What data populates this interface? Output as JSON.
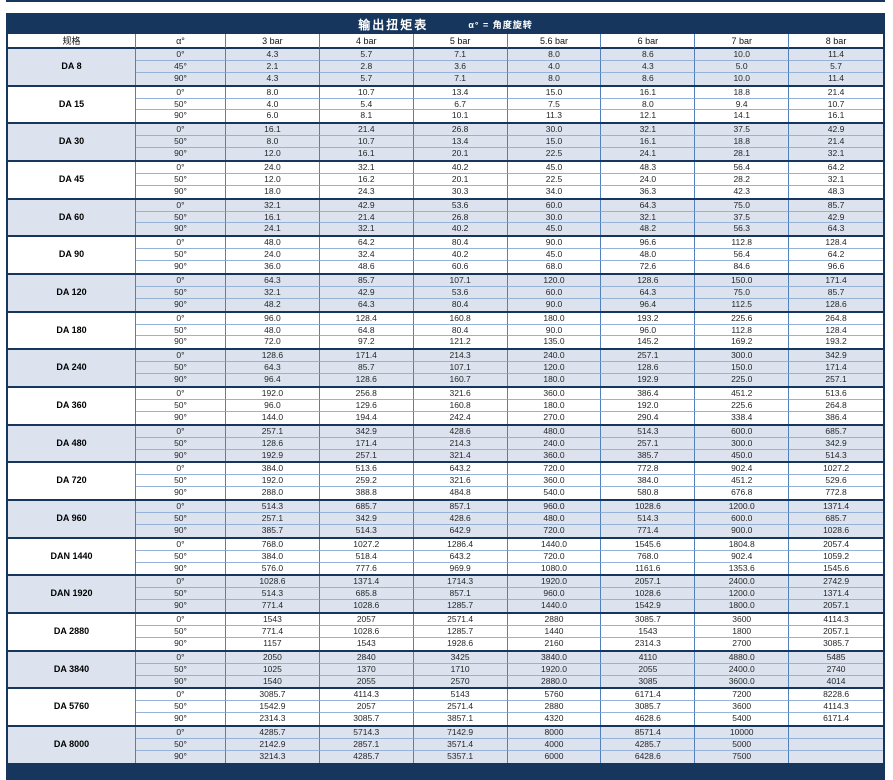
{
  "title_bar": {
    "title": "输出扭矩表",
    "note": "α° = 角度旋转"
  },
  "colors": {
    "header_navy": "#17365d",
    "grid_line_vertical": "#4f81bd",
    "grid_line_horizontal": "#95b3d7",
    "shaded_row_bg": "#dce3ef",
    "title_text": "#ffffff",
    "cell_text": "#262626"
  },
  "table": {
    "columns": [
      "规格",
      "α°",
      "3 bar",
      "4 bar",
      "5 bar",
      "5.6 bar",
      "6 bar",
      "7 bar",
      "8 bar"
    ],
    "groups": [
      {
        "spec": "DA 8",
        "shaded": true,
        "rows": [
          {
            "angle": "0°",
            "values": [
              "4.3",
              "5.7",
              "7.1",
              "8.0",
              "8.6",
              "10.0",
              "11.4"
            ]
          },
          {
            "angle": "45°",
            "values": [
              "2.1",
              "2.8",
              "3.6",
              "4.0",
              "4.3",
              "5.0",
              "5.7"
            ]
          },
          {
            "angle": "90°",
            "values": [
              "4.3",
              "5.7",
              "7.1",
              "8.0",
              "8.6",
              "10.0",
              "11.4"
            ]
          }
        ]
      },
      {
        "spec": "DA 15",
        "shaded": false,
        "rows": [
          {
            "angle": "0°",
            "values": [
              "8.0",
              "10.7",
              "13.4",
              "15.0",
              "16.1",
              "18.8",
              "21.4"
            ]
          },
          {
            "angle": "50°",
            "values": [
              "4.0",
              "5.4",
              "6.7",
              "7.5",
              "8.0",
              "9.4",
              "10.7"
            ]
          },
          {
            "angle": "90°",
            "values": [
              "6.0",
              "8.1",
              "10.1",
              "11.3",
              "12.1",
              "14.1",
              "16.1"
            ]
          }
        ]
      },
      {
        "spec": "DA 30",
        "shaded": true,
        "rows": [
          {
            "angle": "0°",
            "values": [
              "16.1",
              "21.4",
              "26.8",
              "30.0",
              "32.1",
              "37.5",
              "42.9"
            ]
          },
          {
            "angle": "50°",
            "values": [
              "8.0",
              "10.7",
              "13.4",
              "15.0",
              "16.1",
              "18.8",
              "21.4"
            ]
          },
          {
            "angle": "90°",
            "values": [
              "12.0",
              "16.1",
              "20.1",
              "22.5",
              "24.1",
              "28.1",
              "32.1"
            ]
          }
        ]
      },
      {
        "spec": "DA 45",
        "shaded": false,
        "rows": [
          {
            "angle": "0°",
            "values": [
              "24.0",
              "32.1",
              "40.2",
              "45.0",
              "48.3",
              "56.4",
              "64.2"
            ]
          },
          {
            "angle": "50°",
            "values": [
              "12.0",
              "16.2",
              "20.1",
              "22.5",
              "24.0",
              "28.2",
              "32.1"
            ]
          },
          {
            "angle": "90°",
            "values": [
              "18.0",
              "24.3",
              "30.3",
              "34.0",
              "36.3",
              "42.3",
              "48.3"
            ]
          }
        ]
      },
      {
        "spec": "DA 60",
        "shaded": true,
        "rows": [
          {
            "angle": "0°",
            "values": [
              "32.1",
              "42.9",
              "53.6",
              "60.0",
              "64.3",
              "75.0",
              "85.7"
            ]
          },
          {
            "angle": "50°",
            "values": [
              "16.1",
              "21.4",
              "26.8",
              "30.0",
              "32.1",
              "37.5",
              "42.9"
            ]
          },
          {
            "angle": "90°",
            "values": [
              "24.1",
              "32.1",
              "40.2",
              "45.0",
              "48.2",
              "56.3",
              "64.3"
            ]
          }
        ]
      },
      {
        "spec": "DA 90",
        "shaded": false,
        "rows": [
          {
            "angle": "0°",
            "values": [
              "48.0",
              "64.2",
              "80.4",
              "90.0",
              "96.6",
              "112.8",
              "128.4"
            ]
          },
          {
            "angle": "50°",
            "values": [
              "24.0",
              "32.4",
              "40.2",
              "45.0",
              "48.0",
              "56.4",
              "64.2"
            ]
          },
          {
            "angle": "90°",
            "values": [
              "36.0",
              "48.6",
              "60.6",
              "68.0",
              "72.6",
              "84.6",
              "96.6"
            ]
          }
        ]
      },
      {
        "spec": "DA 120",
        "shaded": true,
        "rows": [
          {
            "angle": "0°",
            "values": [
              "64.3",
              "85.7",
              "107.1",
              "120.0",
              "128.6",
              "150.0",
              "171.4"
            ]
          },
          {
            "angle": "50°",
            "values": [
              "32.1",
              "42.9",
              "53.6",
              "60.0",
              "64.3",
              "75.0",
              "85.7"
            ]
          },
          {
            "angle": "90°",
            "values": [
              "48.2",
              "64.3",
              "80.4",
              "90.0",
              "96.4",
              "112.5",
              "128.6"
            ]
          }
        ]
      },
      {
        "spec": "DA 180",
        "shaded": false,
        "rows": [
          {
            "angle": "0°",
            "values": [
              "96.0",
              "128.4",
              "160.8",
              "180.0",
              "193.2",
              "225.6",
              "264.8"
            ]
          },
          {
            "angle": "50°",
            "values": [
              "48.0",
              "64.8",
              "80.4",
              "90.0",
              "96.0",
              "112.8",
              "128.4"
            ]
          },
          {
            "angle": "90°",
            "values": [
              "72.0",
              "97.2",
              "121.2",
              "135.0",
              "145.2",
              "169.2",
              "193.2"
            ]
          }
        ]
      },
      {
        "spec": "DA 240",
        "shaded": true,
        "rows": [
          {
            "angle": "0°",
            "values": [
              "128.6",
              "171.4",
              "214.3",
              "240.0",
              "257.1",
              "300.0",
              "342.9"
            ]
          },
          {
            "angle": "50°",
            "values": [
              "64.3",
              "85.7",
              "107.1",
              "120.0",
              "128.6",
              "150.0",
              "171.4"
            ]
          },
          {
            "angle": "90°",
            "values": [
              "96.4",
              "128.6",
              "160.7",
              "180.0",
              "192.9",
              "225.0",
              "257.1"
            ]
          }
        ]
      },
      {
        "spec": "DA 360",
        "shaded": false,
        "rows": [
          {
            "angle": "0°",
            "values": [
              "192.0",
              "256.8",
              "321.6",
              "360.0",
              "386.4",
              "451.2",
              "513.6"
            ]
          },
          {
            "angle": "50°",
            "values": [
              "96.0",
              "129.6",
              "160.8",
              "180.0",
              "192.0",
              "225.6",
              "264.8"
            ]
          },
          {
            "angle": "90°",
            "values": [
              "144.0",
              "194.4",
              "242.4",
              "270.0",
              "290.4",
              "338.4",
              "386.4"
            ]
          }
        ]
      },
      {
        "spec": "DA 480",
        "shaded": true,
        "rows": [
          {
            "angle": "0°",
            "values": [
              "257.1",
              "342.9",
              "428.6",
              "480.0",
              "514.3",
              "600.0",
              "685.7"
            ]
          },
          {
            "angle": "50°",
            "values": [
              "128.6",
              "171.4",
              "214.3",
              "240.0",
              "257.1",
              "300.0",
              "342.9"
            ]
          },
          {
            "angle": "90°",
            "values": [
              "192.9",
              "257.1",
              "321.4",
              "360.0",
              "385.7",
              "450.0",
              "514.3"
            ]
          }
        ]
      },
      {
        "spec": "DA 720",
        "shaded": false,
        "rows": [
          {
            "angle": "0°",
            "values": [
              "384.0",
              "513.6",
              "643.2",
              "720.0",
              "772.8",
              "902.4",
              "1027.2"
            ]
          },
          {
            "angle": "50°",
            "values": [
              "192.0",
              "259.2",
              "321.6",
              "360.0",
              "384.0",
              "451.2",
              "529.6"
            ]
          },
          {
            "angle": "90°",
            "values": [
              "288.0",
              "388.8",
              "484.8",
              "540.0",
              "580.8",
              "676.8",
              "772.8"
            ]
          }
        ]
      },
      {
        "spec": "DA 960",
        "shaded": true,
        "rows": [
          {
            "angle": "0°",
            "values": [
              "514.3",
              "685.7",
              "857.1",
              "960.0",
              "1028.6",
              "1200.0",
              "1371.4"
            ]
          },
          {
            "angle": "50°",
            "values": [
              "257.1",
              "342.9",
              "428.6",
              "480.0",
              "514.3",
              "600.0",
              "685.7"
            ]
          },
          {
            "angle": "90°",
            "values": [
              "385.7",
              "514.3",
              "642.9",
              "720.0",
              "771.4",
              "900.0",
              "1028.6"
            ]
          }
        ]
      },
      {
        "spec": "DAN 1440",
        "shaded": false,
        "rows": [
          {
            "angle": "0°",
            "values": [
              "768.0",
              "1027.2",
              "1286.4",
              "1440.0",
              "1545.6",
              "1804.8",
              "2057.4"
            ]
          },
          {
            "angle": "50°",
            "values": [
              "384.0",
              "518.4",
              "643.2",
              "720.0",
              "768.0",
              "902.4",
              "1059.2"
            ]
          },
          {
            "angle": "90°",
            "values": [
              "576.0",
              "777.6",
              "969.9",
              "1080.0",
              "1161.6",
              "1353.6",
              "1545.6"
            ]
          }
        ]
      },
      {
        "spec": "DAN 1920",
        "shaded": true,
        "rows": [
          {
            "angle": "0°",
            "values": [
              "1028.6",
              "1371.4",
              "1714.3",
              "1920.0",
              "2057.1",
              "2400.0",
              "2742.9"
            ]
          },
          {
            "angle": "50°",
            "values": [
              "514.3",
              "685.8",
              "857.1",
              "960.0",
              "1028.6",
              "1200.0",
              "1371.4"
            ]
          },
          {
            "angle": "90°",
            "values": [
              "771.4",
              "1028.6",
              "1285.7",
              "1440.0",
              "1542.9",
              "1800.0",
              "2057.1"
            ]
          }
        ]
      },
      {
        "spec": "DA 2880",
        "shaded": false,
        "rows": [
          {
            "angle": "0°",
            "values": [
              "1543",
              "2057",
              "2571.4",
              "2880",
              "3085.7",
              "3600",
              "4114.3"
            ]
          },
          {
            "angle": "50°",
            "values": [
              "771.4",
              "1028.6",
              "1285.7",
              "1440",
              "1543",
              "1800",
              "2057.1"
            ]
          },
          {
            "angle": "90°",
            "values": [
              "1157",
              "1543",
              "1928.6",
              "2160",
              "2314.3",
              "2700",
              "3085.7"
            ]
          }
        ]
      },
      {
        "spec": "DA 3840",
        "shaded": true,
        "rows": [
          {
            "angle": "0°",
            "values": [
              "2050",
              "2840",
              "3425",
              "3840.0",
              "4110",
              "4880.0",
              "5485"
            ]
          },
          {
            "angle": "50°",
            "values": [
              "1025",
              "1370",
              "1710",
              "1920.0",
              "2055",
              "2400.0",
              "2740"
            ]
          },
          {
            "angle": "90°",
            "values": [
              "1540",
              "2055",
              "2570",
              "2880.0",
              "3085",
              "3600.0",
              "4014"
            ]
          }
        ]
      },
      {
        "spec": "DA 5760",
        "shaded": false,
        "rows": [
          {
            "angle": "0°",
            "values": [
              "3085.7",
              "4114.3",
              "5143",
              "5760",
              "6171.4",
              "7200",
              "8228.6"
            ]
          },
          {
            "angle": "50°",
            "values": [
              "1542.9",
              "2057",
              "2571.4",
              "2880",
              "3085.7",
              "3600",
              "4114.3"
            ]
          },
          {
            "angle": "90°",
            "values": [
              "2314.3",
              "3085.7",
              "3857.1",
              "4320",
              "4628.6",
              "5400",
              "6171.4"
            ]
          }
        ]
      },
      {
        "spec": "DA 8000",
        "shaded": true,
        "rows": [
          {
            "angle": "0°",
            "values": [
              "4285.7",
              "5714.3",
              "7142.9",
              "8000",
              "8571.4",
              "10000",
              ""
            ]
          },
          {
            "angle": "50°",
            "values": [
              "2142.9",
              "2857.1",
              "3571.4",
              "4000",
              "4285.7",
              "5000",
              ""
            ]
          },
          {
            "angle": "90°",
            "values": [
              "3214.3",
              "4285.7",
              "5357.1",
              "6000",
              "6428.6",
              "7500",
              ""
            ]
          }
        ]
      }
    ]
  }
}
